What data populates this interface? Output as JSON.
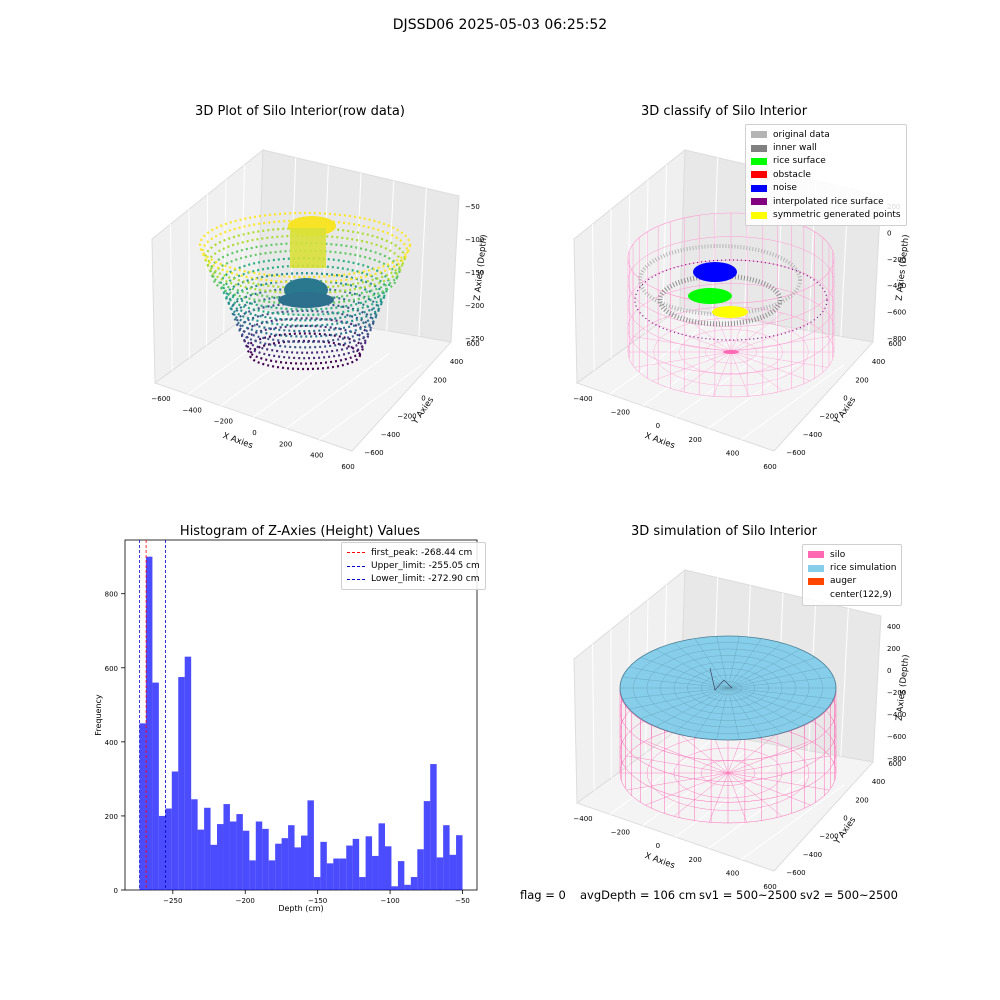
{
  "suptitle": "DJSSD06 2025-05-03 06:25:52",
  "panels": [
    {
      "title": "3D Plot of Silo Interior(row data)",
      "x_label": "X Axies",
      "y_label": "Y Axies",
      "z_label": "Z Axies (Depth)",
      "x_ticks": [
        "−600",
        "−400",
        "−200",
        "0",
        "200",
        "400",
        "600"
      ],
      "y_ticks": [
        "−600",
        "−400",
        "−200",
        "0",
        "200",
        "400",
        "600"
      ],
      "z_ticks": [
        "−50",
        "−100",
        "−150",
        "−200",
        "−250"
      ]
    },
    {
      "title": "3D classify of Silo Interior",
      "x_label": "X Axies",
      "y_label": "Y Axies",
      "z_label": "Z Axies (Depth)",
      "x_ticks": [
        "−400",
        "−200",
        "0",
        "200",
        "400",
        "600"
      ],
      "y_ticks": [
        "−600",
        "−400",
        "−200",
        "0",
        "200",
        "400",
        "600"
      ],
      "z_ticks": [
        "200",
        "0",
        "−200",
        "−400",
        "−600",
        "−800"
      ],
      "legend": [
        {
          "label": "original data",
          "color": "#b4b4b4"
        },
        {
          "label": "inner wall",
          "color": "#808080"
        },
        {
          "label": "rice surface",
          "color": "#00ff00"
        },
        {
          "label": "obstacle",
          "color": "#ff0000"
        },
        {
          "label": "noise",
          "color": "#0000ff"
        },
        {
          "label": "interpolated rice surface",
          "color": "#800080"
        },
        {
          "label": "symmetric generated points",
          "color": "#ffff00"
        }
      ]
    },
    {
      "title": "3D simulation of Silo Interior",
      "x_label": "X Axies",
      "y_label": "Y Axies",
      "z_label": "Z Axies (Depth)",
      "x_ticks": [
        "−400",
        "−200",
        "0",
        "200",
        "400",
        "600"
      ],
      "y_ticks": [
        "−600",
        "−400",
        "−200",
        "0",
        "200",
        "400",
        "600"
      ],
      "z_ticks": [
        "400",
        "200",
        "0",
        "−200",
        "−400",
        "−600",
        "−800"
      ],
      "legend": [
        {
          "label": "silo",
          "color": "#ff69b4"
        },
        {
          "label": "rice simulation",
          "color": "#87ceeb"
        },
        {
          "label": "auger",
          "color": "#ff4500"
        },
        {
          "label": "center(122,9)",
          "color": ""
        }
      ]
    }
  ],
  "chart_data": {
    "type": "bar",
    "title": "Histogram of Z-Axies (Height) Values",
    "xlabel": "Depth (cm)",
    "ylabel": "Frequency",
    "xlim": [
      -283,
      -40
    ],
    "ylim": [
      0,
      945
    ],
    "x_ticks": [
      -250,
      -200,
      -150,
      -100,
      -50
    ],
    "x_tick_labels": [
      "−250",
      "−200",
      "−150",
      "−100",
      "−50"
    ],
    "y_ticks": [
      0,
      200,
      400,
      600,
      800
    ],
    "bin_edges_start": -273,
    "bin_width": 4.46,
    "counts": [
      450,
      900,
      560,
      200,
      220,
      320,
      575,
      630,
      245,
      163,
      222,
      122,
      178,
      232,
      185,
      205,
      160,
      80,
      185,
      165,
      80,
      125,
      140,
      175,
      115,
      147,
      242,
      35,
      130,
      72,
      85,
      85,
      120,
      138,
      35,
      145,
      92,
      180,
      118,
      10,
      78,
      14,
      35,
      110,
      240,
      340,
      88,
      175,
      95,
      148
    ],
    "bar_color": "#0000ff",
    "vlines": [
      {
        "x": -268.44,
        "color": "#ff0000",
        "label": "first_peak: -268.44 cm"
      },
      {
        "x": -255.05,
        "color": "#0000cc",
        "label": "Upper_limit: -255.05 cm"
      },
      {
        "x": -272.9,
        "color": "#0000cc",
        "label": "Lower_limit: -272.90 cm"
      }
    ]
  },
  "status": {
    "flag": "flag = 0",
    "avg": "avgDepth = 106 cm",
    "sv1": "sv1 = 500~2500",
    "sv2": "sv2 = 500~2500"
  }
}
